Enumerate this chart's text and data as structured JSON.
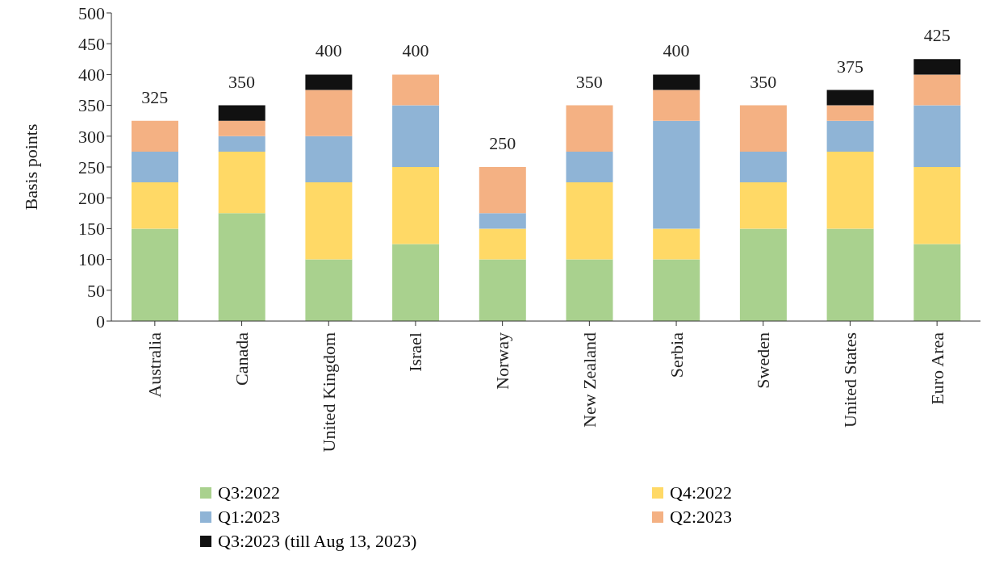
{
  "chart_data": {
    "type": "bar",
    "stacked": true,
    "ylabel": "Basis points",
    "categories": [
      "Australia",
      "Canada",
      "United Kingdom",
      "Israel",
      "Norway",
      "New Zealand",
      "Serbia",
      "Sweden",
      "United States",
      "Euro Area"
    ],
    "series": [
      {
        "name": "Q3:2022",
        "color": "#a9d18e",
        "values": [
          150,
          175,
          100,
          125,
          100,
          100,
          100,
          150,
          150,
          125
        ]
      },
      {
        "name": "Q4:2022",
        "color": "#ffd966",
        "values": [
          75,
          100,
          125,
          125,
          50,
          125,
          50,
          75,
          125,
          125
        ]
      },
      {
        "name": "Q1:2023",
        "color": "#8fb4d6",
        "values": [
          50,
          25,
          75,
          100,
          25,
          50,
          175,
          50,
          50,
          100
        ]
      },
      {
        "name": "Q2:2023",
        "color": "#f4b183",
        "values": [
          50,
          25,
          75,
          50,
          75,
          75,
          50,
          75,
          25,
          50
        ]
      },
      {
        "name": "Q3:2023 (till Aug 13, 2023)",
        "color": "#111111",
        "values": [
          0,
          25,
          25,
          0,
          0,
          0,
          25,
          0,
          25,
          25
        ]
      }
    ],
    "totals": [
      "325",
      "350",
      "400",
      "400",
      "250",
      "350",
      "400",
      "350",
      "375",
      "425"
    ],
    "ylim": [
      0,
      500
    ],
    "yticks": [
      0,
      50,
      100,
      150,
      200,
      250,
      300,
      350,
      400,
      450,
      500
    ],
    "grid": false,
    "legend": "bottom"
  }
}
